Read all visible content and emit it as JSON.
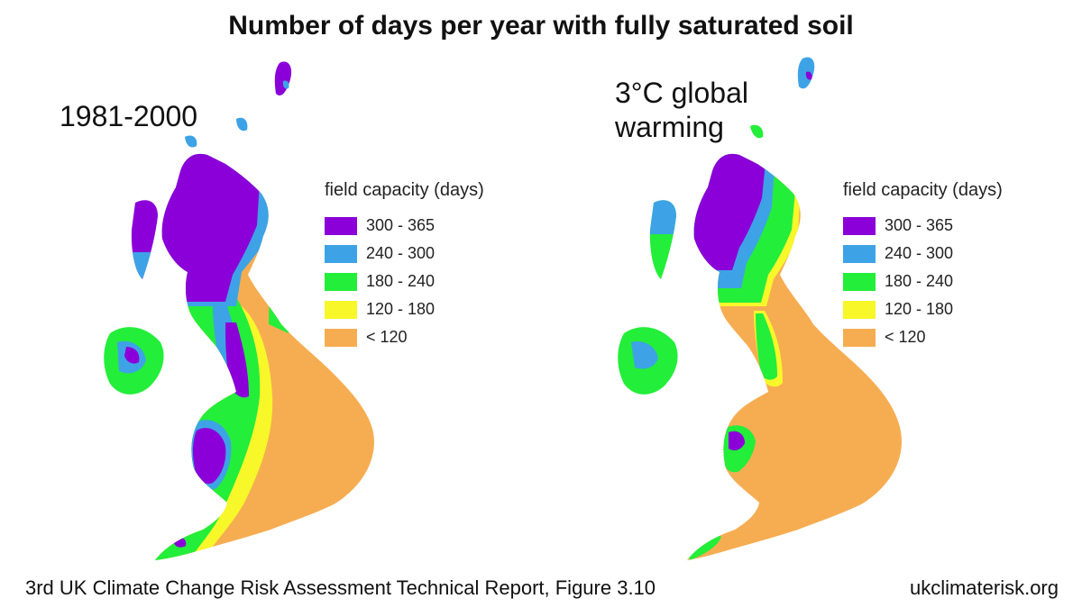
{
  "title": "Number of days per year with fully saturated soil",
  "panels": [
    {
      "period": "1981-2000"
    },
    {
      "period": "3°C global warming"
    }
  ],
  "legend": {
    "title": "field capacity (days)",
    "items": [
      {
        "label": "300 - 365",
        "color": "#8b00d9"
      },
      {
        "label": "240 - 300",
        "color": "#3ea3e6"
      },
      {
        "label": "180 - 240",
        "color": "#23ee3a"
      },
      {
        "label": "120 - 180",
        "color": "#f7f72a"
      },
      {
        "label": "< 120",
        "color": "#f6ad52"
      }
    ]
  },
  "footer": {
    "source": "3rd UK Climate Change Risk Assessment Technical Report, Figure 3.10",
    "site": "ukclimaterisk.org"
  }
}
